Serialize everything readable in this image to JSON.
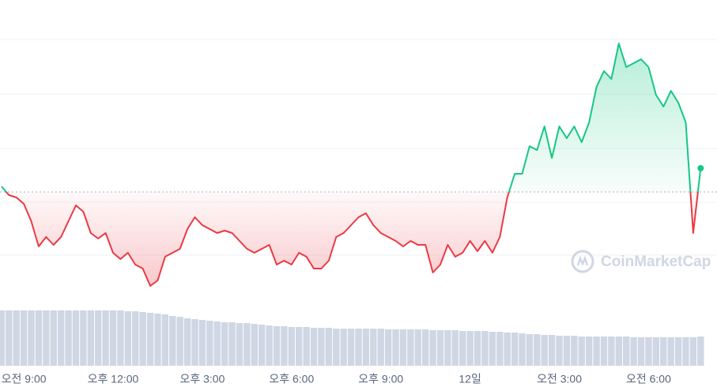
{
  "chart_data": {
    "type": "line",
    "x": [
      -0.75,
      -0.5,
      -0.25,
      0,
      0.25,
      0.5,
      0.75,
      1,
      1.25,
      1.5,
      1.75,
      2,
      2.25,
      2.5,
      2.75,
      3,
      3.25,
      3.5,
      3.75,
      4,
      4.25,
      4.5,
      4.75,
      5,
      5.25,
      5.5,
      5.75,
      6,
      6.25,
      6.5,
      6.75,
      7,
      7.25,
      7.5,
      7.75,
      8,
      8.25,
      8.5,
      8.75,
      9,
      9.25,
      9.5,
      9.75,
      10,
      10.25,
      10.5,
      10.75,
      11,
      11.25,
      11.5,
      11.75,
      12,
      12.25,
      12.5,
      12.75,
      13,
      13.25,
      13.5,
      13.75,
      14,
      14.25,
      14.5,
      14.75,
      15,
      15.25,
      15.5,
      15.75,
      16,
      16.25,
      16.5,
      16.75,
      17,
      17.25,
      17.5,
      17.75,
      18,
      18.25,
      18.5,
      18.75,
      19,
      19.25,
      19.5,
      19.75,
      20,
      20.25,
      20.5,
      20.75,
      21,
      21.25,
      21.5,
      21.75,
      22,
      22.25,
      22.5,
      22.75
    ],
    "series": [
      {
        "values": [
          164,
          153,
          150,
          142,
          120,
          88,
          100,
          90,
          100,
          120,
          140,
          132,
          105,
          98,
          105,
          80,
          72,
          80,
          65,
          60,
          38,
          45,
          75,
          80,
          85,
          110,
          125,
          115,
          110,
          105,
          108,
          105,
          95,
          85,
          80,
          85,
          90,
          65,
          70,
          65,
          80,
          75,
          60,
          60,
          70,
          100,
          105,
          115,
          125,
          130,
          115,
          105,
          100,
          95,
          88,
          95,
          90,
          90,
          55,
          65,
          90,
          75,
          80,
          95,
          82,
          95,
          80,
          100,
          150,
          180,
          180,
          215,
          210,
          240,
          200,
          240,
          225,
          240,
          220,
          245,
          290,
          310,
          300,
          345,
          315,
          320,
          325,
          315,
          280,
          265,
          285,
          270,
          245,
          105,
          187
        ]
      }
    ],
    "volume": [
      70,
      70,
      70,
      70,
      70,
      70,
      70,
      70,
      70,
      70,
      70,
      70,
      70,
      70,
      70,
      70,
      70,
      69,
      69,
      68,
      67,
      66,
      65,
      63,
      62,
      60,
      59,
      58,
      57,
      56,
      55,
      55,
      54,
      54,
      53,
      52,
      51,
      50,
      50,
      49,
      49,
      49,
      48,
      48,
      48,
      47,
      47,
      47,
      47,
      47,
      47,
      47,
      46,
      46,
      46,
      46,
      46,
      46,
      45,
      45,
      45,
      45,
      44,
      44,
      44,
      44,
      43,
      43,
      42,
      42,
      41,
      40,
      40,
      39,
      39,
      38,
      38,
      38,
      37,
      37,
      37,
      37,
      37,
      37,
      37,
      36,
      36,
      36,
      36,
      36,
      36,
      36,
      36,
      36,
      37
    ],
    "volume_ylim": [
      0,
      100
    ],
    "xlim": [
      -0.8,
      23.3
    ],
    "ylim": [
      0,
      400
    ],
    "xticks": [
      {
        "value": 0,
        "label": "오전 9:00"
      },
      {
        "value": 3,
        "label": "오후 12:00"
      },
      {
        "value": 6,
        "label": "오후 3:00"
      },
      {
        "value": 9,
        "label": "오후 6:00"
      },
      {
        "value": 12,
        "label": "오후 9:00"
      },
      {
        "value": 15,
        "label": "12일"
      },
      {
        "value": 18,
        "label": "오전 3:00"
      },
      {
        "value": 21,
        "label": "오전 6:00"
      }
    ],
    "gridlines": [
      350,
      281,
      212,
      144,
      77
    ],
    "reference": 157,
    "up_color": "#16c784",
    "down_color": "#ea3943",
    "volume_color": "#cfd6e4",
    "watermark": "CoinMarketCap"
  }
}
